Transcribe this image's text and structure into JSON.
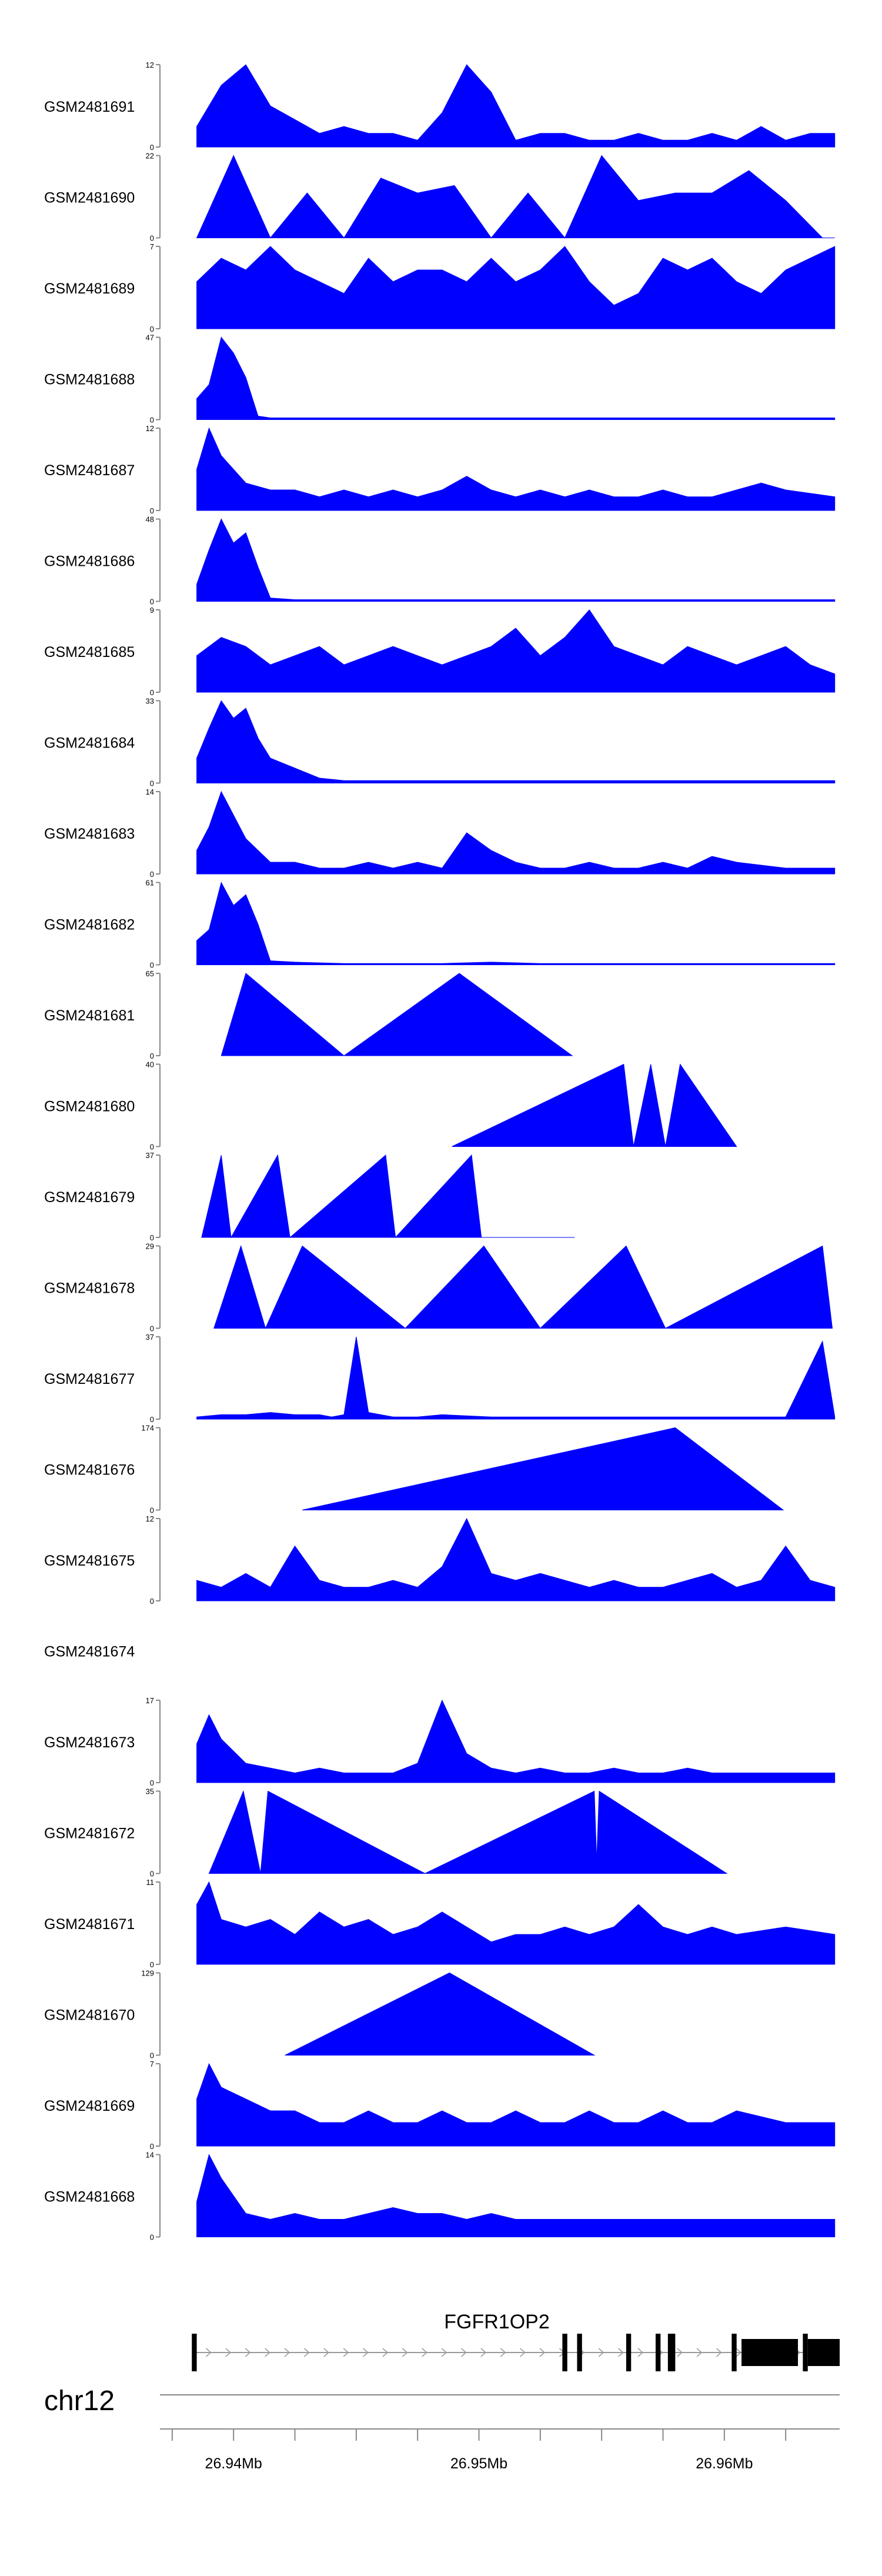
{
  "chart_data": {
    "type": "area",
    "fill_color": "#0000FF",
    "tracks": [
      {
        "name": "GSM2481691",
        "ymax": 12,
        "x": [
          26.9385,
          26.9395,
          26.9405,
          26.9415,
          26.9425,
          26.9435,
          26.9445,
          26.9455,
          26.9465,
          26.9475,
          26.9485,
          26.9495,
          26.9505,
          26.9515,
          26.9525,
          26.9535,
          26.9545,
          26.9555,
          26.9565,
          26.9575,
          26.9585,
          26.9595,
          26.9605,
          26.9615,
          26.9625,
          26.9635,
          26.9645
        ],
        "y": [
          3,
          9,
          12,
          6,
          4,
          2,
          3,
          2,
          2,
          1,
          5,
          12,
          8,
          1,
          2,
          2,
          1,
          1,
          2,
          1,
          1,
          2,
          1,
          3,
          1,
          2,
          2
        ]
      },
      {
        "name": "GSM2481690",
        "ymax": 22,
        "x": [
          26.9385,
          26.94,
          26.9415,
          26.943,
          26.9445,
          26.946,
          26.9475,
          26.949,
          26.9505,
          26.952,
          26.9535,
          26.955,
          26.9565,
          26.958,
          26.9595,
          26.961,
          26.9625,
          26.964,
          26.9645
        ],
        "y": [
          0,
          22,
          0,
          12,
          0,
          16,
          12,
          14,
          0,
          12,
          0,
          22,
          10,
          12,
          12,
          18,
          10,
          0,
          0
        ]
      },
      {
        "name": "GSM2481689",
        "ymax": 7,
        "x": [
          26.9385,
          26.9395,
          26.9405,
          26.9415,
          26.9425,
          26.9435,
          26.9445,
          26.9455,
          26.9465,
          26.9475,
          26.9485,
          26.9495,
          26.9505,
          26.9515,
          26.9525,
          26.9535,
          26.9545,
          26.9555,
          26.9565,
          26.9575,
          26.9585,
          26.9595,
          26.9605,
          26.9615,
          26.9625,
          26.9635,
          26.9645
        ],
        "y": [
          4,
          6,
          5,
          7,
          5,
          4,
          3,
          6,
          4,
          5,
          5,
          4,
          6,
          4,
          5,
          7,
          4,
          2,
          3,
          6,
          5,
          6,
          4,
          3,
          5,
          6,
          7
        ]
      },
      {
        "name": "GSM2481688",
        "ymax": 47,
        "x": [
          26.9385,
          26.939,
          26.9395,
          26.94,
          26.9405,
          26.941,
          26.9415,
          26.9425,
          26.9445,
          26.9465,
          26.9485,
          26.9505,
          26.9525,
          26.9545,
          26.9565,
          26.9585,
          26.9605,
          26.9625,
          26.9645
        ],
        "y": [
          12,
          20,
          47,
          38,
          24,
          2,
          1,
          1,
          1,
          1,
          1,
          1,
          1,
          1,
          1,
          1,
          1,
          1,
          1
        ]
      },
      {
        "name": "GSM2481687",
        "ymax": 12,
        "x": [
          26.9385,
          26.939,
          26.9395,
          26.9405,
          26.9415,
          26.9425,
          26.9435,
          26.9445,
          26.9455,
          26.9465,
          26.9475,
          26.9485,
          26.9495,
          26.9505,
          26.9515,
          26.9525,
          26.9535,
          26.9545,
          26.9555,
          26.9565,
          26.9575,
          26.9585,
          26.9595,
          26.9605,
          26.9615,
          26.9625,
          26.9645
        ],
        "y": [
          6,
          12,
          8,
          4,
          3,
          3,
          2,
          3,
          2,
          3,
          2,
          3,
          5,
          3,
          2,
          3,
          2,
          3,
          2,
          2,
          3,
          2,
          2,
          3,
          4,
          3,
          2
        ]
      },
      {
        "name": "GSM2481686",
        "ymax": 48,
        "x": [
          26.9385,
          26.939,
          26.9395,
          26.94,
          26.9405,
          26.941,
          26.9415,
          26.9425,
          26.9445,
          26.9465,
          26.9485,
          26.9505,
          26.9525,
          26.9545,
          26.9565,
          26.9585,
          26.9605,
          26.9625,
          26.9645
        ],
        "y": [
          10,
          30,
          48,
          34,
          40,
          20,
          2,
          1,
          1,
          1,
          1,
          1,
          1,
          1,
          1,
          1,
          1,
          1,
          1
        ]
      },
      {
        "name": "GSM2481685",
        "ymax": 9,
        "x": [
          26.9385,
          26.9395,
          26.9405,
          26.9415,
          26.9425,
          26.9435,
          26.9445,
          26.9455,
          26.9465,
          26.9475,
          26.9485,
          26.9495,
          26.9505,
          26.9515,
          26.9525,
          26.9535,
          26.9545,
          26.9555,
          26.9565,
          26.9575,
          26.9585,
          26.9595,
          26.9605,
          26.9615,
          26.9625,
          26.9635,
          26.9645
        ],
        "y": [
          4,
          6,
          5,
          3,
          4,
          5,
          3,
          4,
          5,
          4,
          3,
          4,
          5,
          7,
          4,
          6,
          9,
          5,
          4,
          3,
          5,
          4,
          3,
          4,
          5,
          3,
          2
        ]
      },
      {
        "name": "GSM2481684",
        "ymax": 33,
        "x": [
          26.9385,
          26.939,
          26.9395,
          26.94,
          26.9405,
          26.941,
          26.9415,
          26.942,
          26.9425,
          26.9435,
          26.9445,
          26.9465,
          26.9485,
          26.9505,
          26.9525,
          26.9545,
          26.9565,
          26.9585,
          26.9605,
          26.9625,
          26.9645
        ],
        "y": [
          10,
          22,
          33,
          26,
          30,
          18,
          10,
          8,
          6,
          2,
          1,
          1,
          1,
          1,
          1,
          1,
          1,
          1,
          1,
          1,
          1
        ]
      },
      {
        "name": "GSM2481683",
        "ymax": 14,
        "x": [
          26.9385,
          26.939,
          26.9395,
          26.94,
          26.9405,
          26.9415,
          26.9425,
          26.9435,
          26.9445,
          26.9455,
          26.9465,
          26.9475,
          26.9485,
          26.9495,
          26.9505,
          26.9515,
          26.9525,
          26.9535,
          26.9545,
          26.9555,
          26.9565,
          26.9575,
          26.9585,
          26.9595,
          26.9605,
          26.9625,
          26.9645
        ],
        "y": [
          4,
          8,
          14,
          10,
          6,
          2,
          2,
          1,
          1,
          2,
          1,
          2,
          1,
          7,
          4,
          2,
          1,
          1,
          2,
          1,
          1,
          2,
          1,
          3,
          2,
          1,
          1
        ]
      },
      {
        "name": "GSM2481682",
        "ymax": 61,
        "x": [
          26.9385,
          26.939,
          26.9395,
          26.94,
          26.9405,
          26.941,
          26.9415,
          26.9425,
          26.9445,
          26.9465,
          26.9485,
          26.9505,
          26.9525,
          26.9545,
          26.9565,
          26.9585,
          26.9605,
          26.9625,
          26.9645
        ],
        "y": [
          18,
          26,
          61,
          44,
          52,
          30,
          3,
          2,
          1,
          1,
          1,
          2,
          1,
          1,
          1,
          1,
          1,
          1,
          1
        ]
      },
      {
        "name": "GSM2481681",
        "ymax": 65,
        "x": [
          26.9395,
          26.9405,
          26.9445,
          26.9492,
          26.9538
        ],
        "y": [
          0,
          65,
          0,
          65,
          0
        ]
      },
      {
        "name": "GSM2481680",
        "ymax": 40,
        "x": [
          26.9489,
          26.9559,
          26.9563,
          26.957,
          26.9576,
          26.9582,
          26.9605
        ],
        "y": [
          0,
          40,
          0,
          40,
          0,
          40,
          0
        ]
      },
      {
        "name": "GSM2481679",
        "ymax": 37,
        "x": [
          26.9387,
          26.9395,
          26.9399,
          26.9418,
          26.9423,
          26.9462,
          26.9466,
          26.9497,
          26.9501,
          26.9539
        ],
        "y": [
          0,
          37,
          0,
          37,
          0,
          37,
          0,
          37,
          0,
          0
        ]
      },
      {
        "name": "GSM2481678",
        "ymax": 29,
        "x": [
          26.9392,
          26.9403,
          26.9413,
          26.9428,
          26.947,
          26.9502,
          26.9525,
          26.956,
          26.9576,
          26.964,
          26.9644
        ],
        "y": [
          0,
          29,
          0,
          29,
          0,
          29,
          0,
          29,
          0,
          29,
          0
        ]
      },
      {
        "name": "GSM2481677",
        "ymax": 37,
        "x": [
          26.9385,
          26.9395,
          26.9405,
          26.9415,
          26.9425,
          26.9435,
          26.944,
          26.9445,
          26.945,
          26.9455,
          26.9465,
          26.9475,
          26.9485,
          26.9505,
          26.9525,
          26.9545,
          26.9555,
          26.956,
          26.9565,
          26.957,
          26.9585,
          26.9605,
          26.9625,
          26.964,
          26.9645
        ],
        "y": [
          1,
          2,
          2,
          3,
          2,
          2,
          1,
          2,
          37,
          3,
          1,
          1,
          2,
          1,
          1,
          1,
          1,
          1,
          1,
          1,
          1,
          1,
          1,
          35,
          1
        ]
      },
      {
        "name": "GSM2481676",
        "ymax": 174,
        "x": [
          26.9428,
          26.958,
          26.9624
        ],
        "y": [
          0,
          174,
          0
        ]
      },
      {
        "name": "GSM2481675",
        "ymax": 12,
        "x": [
          26.9385,
          26.9395,
          26.9405,
          26.9415,
          26.9425,
          26.9435,
          26.9445,
          26.9455,
          26.9465,
          26.9475,
          26.9485,
          26.9495,
          26.9505,
          26.9515,
          26.9525,
          26.9535,
          26.9545,
          26.9555,
          26.9565,
          26.9575,
          26.9585,
          26.9595,
          26.9605,
          26.9615,
          26.9625,
          26.9635,
          26.9645
        ],
        "y": [
          3,
          2,
          4,
          2,
          8,
          3,
          2,
          2,
          3,
          2,
          5,
          12,
          4,
          3,
          4,
          3,
          2,
          3,
          2,
          2,
          3,
          4,
          2,
          3,
          8,
          3,
          2
        ]
      },
      {
        "name": "GSM2481674",
        "ymax": 0,
        "x": [],
        "y": []
      },
      {
        "name": "GSM2481673",
        "ymax": 17,
        "x": [
          26.9385,
          26.939,
          26.9395,
          26.9405,
          26.9415,
          26.9425,
          26.9435,
          26.9445,
          26.9455,
          26.9465,
          26.9475,
          26.9485,
          26.9495,
          26.9505,
          26.9515,
          26.9525,
          26.9535,
          26.9545,
          26.9555,
          26.9565,
          26.9575,
          26.9585,
          26.9595,
          26.9605,
          26.9625,
          26.9645
        ],
        "y": [
          8,
          14,
          9,
          4,
          3,
          2,
          3,
          2,
          2,
          2,
          4,
          17,
          6,
          3,
          2,
          3,
          2,
          2,
          3,
          2,
          2,
          3,
          2,
          2,
          2,
          2
        ]
      },
      {
        "name": "GSM2481672",
        "ymax": 35,
        "x": [
          26.939,
          26.9404,
          26.9411,
          26.9414,
          26.9478,
          26.9547,
          26.9548,
          26.9549,
          26.9601
        ],
        "y": [
          0,
          35,
          0,
          35,
          0,
          35,
          5,
          35,
          0
        ]
      },
      {
        "name": "GSM2481671",
        "ymax": 11,
        "x": [
          26.9385,
          26.939,
          26.9395,
          26.9405,
          26.9415,
          26.9425,
          26.9435,
          26.9445,
          26.9455,
          26.9465,
          26.9475,
          26.9485,
          26.9495,
          26.9505,
          26.9515,
          26.9525,
          26.9535,
          26.9545,
          26.9555,
          26.9565,
          26.9575,
          26.9585,
          26.9595,
          26.9605,
          26.9625,
          26.9645
        ],
        "y": [
          8,
          11,
          6,
          5,
          6,
          4,
          7,
          5,
          6,
          4,
          5,
          7,
          5,
          3,
          4,
          4,
          5,
          4,
          5,
          8,
          5,
          4,
          5,
          4,
          5,
          4
        ],
        "closed": true
      },
      {
        "name": "GSM2481670",
        "ymax": 129,
        "x": [
          26.9421,
          26.9488,
          26.9547
        ],
        "y": [
          0,
          129,
          0
        ]
      },
      {
        "name": "GSM2481669",
        "ymax": 7,
        "x": [
          26.9385,
          26.939,
          26.9395,
          26.9405,
          26.9415,
          26.9425,
          26.9435,
          26.9445,
          26.9455,
          26.9465,
          26.9475,
          26.9485,
          26.9495,
          26.9505,
          26.9515,
          26.9525,
          26.9535,
          26.9545,
          26.9555,
          26.9565,
          26.9575,
          26.9585,
          26.9595,
          26.9605,
          26.9625,
          26.9645
        ],
        "y": [
          4,
          7,
          5,
          4,
          3,
          3,
          2,
          2,
          3,
          2,
          2,
          3,
          2,
          2,
          3,
          2,
          2,
          3,
          2,
          2,
          3,
          2,
          2,
          3,
          2,
          2
        ]
      },
      {
        "name": "GSM2481668",
        "ymax": 14,
        "x": [
          26.9385,
          26.939,
          26.9395,
          26.9405,
          26.9415,
          26.9425,
          26.9435,
          26.9445,
          26.9455,
          26.9465,
          26.9475,
          26.9485,
          26.9495,
          26.9505,
          26.9515,
          26.9525,
          26.9535,
          26.9545,
          26.9555,
          26.9565,
          26.9575,
          26.9585,
          26.9595,
          26.9605,
          26.9625,
          26.9645
        ],
        "y": [
          6,
          14,
          10,
          4,
          3,
          4,
          3,
          3,
          4,
          5,
          4,
          4,
          3,
          4,
          3,
          3,
          3,
          3,
          3,
          3,
          3,
          3,
          3,
          3,
          3,
          3
        ]
      }
    ],
    "gene": {
      "name": "FGFR1OP2",
      "intron": [
        26.9383,
        26.9647
      ],
      "exons": [
        [
          26.9383,
          26.9385
        ],
        [
          26.9534,
          26.9536
        ],
        [
          26.954,
          26.9542
        ],
        [
          26.956,
          26.9562
        ],
        [
          26.9572,
          26.9574
        ],
        [
          26.9577,
          26.958
        ],
        [
          26.9603,
          26.9605
        ],
        [
          26.9607,
          26.963
        ],
        [
          26.9632,
          26.9634
        ],
        [
          26.9634,
          26.9647
        ]
      ]
    },
    "chromosome": "chr12",
    "xaxis": {
      "range": [
        26.937,
        26.9647
      ],
      "ticks": [
        26.94,
        26.95,
        26.96
      ],
      "tick_labels": [
        "26.94Mb",
        "26.95Mb",
        "26.96Mb"
      ]
    }
  }
}
